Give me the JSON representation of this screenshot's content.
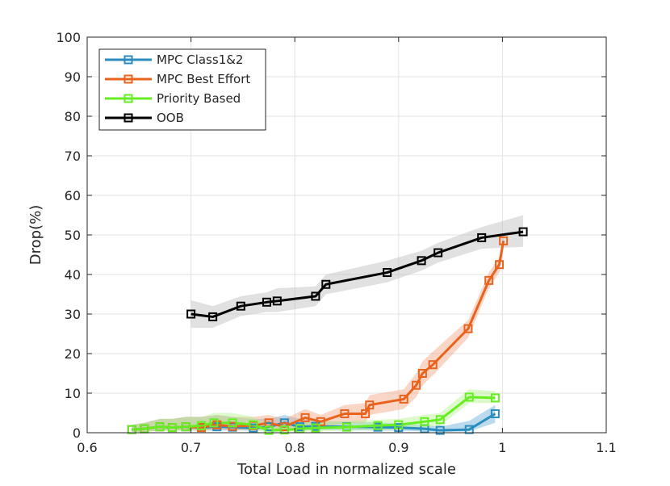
{
  "chart_data": {
    "type": "line",
    "title": "",
    "xlabel": "Total Load in normalized scale",
    "ylabel": "Drop(%)",
    "xlim": [
      0.6,
      1.1
    ],
    "ylim": [
      0,
      100
    ],
    "xticks": [
      0.6,
      0.7,
      0.8,
      0.9,
      1.0,
      1.1
    ],
    "xtick_labels": [
      "0.6",
      "0.7",
      "0.8",
      "0.9",
      "1",
      "1.1"
    ],
    "yticks": [
      0,
      10,
      20,
      30,
      40,
      50,
      60,
      70,
      80,
      90,
      100
    ],
    "ytick_labels": [
      "0",
      "10",
      "20",
      "30",
      "40",
      "50",
      "60",
      "70",
      "80",
      "90",
      "100"
    ],
    "grid": true,
    "legend_position": "top-left",
    "series": [
      {
        "name": "MPC Class1&2",
        "color": "#2b8cbe",
        "band_color": "#6baed6",
        "x": [
          0.643,
          0.655,
          0.67,
          0.682,
          0.695,
          0.71,
          0.725,
          0.74,
          0.76,
          0.775,
          0.79,
          0.805,
          0.82,
          0.85,
          0.88,
          0.9,
          0.925,
          0.94,
          0.968,
          0.993
        ],
        "y": [
          0.8,
          1.0,
          1.5,
          1.3,
          1.5,
          1.3,
          1.5,
          1.4,
          1.2,
          1.5,
          2.5,
          1.5,
          1.6,
          1.5,
          1.4,
          1.3,
          1.0,
          0.6,
          0.8,
          4.8
        ],
        "low": [
          0.2,
          0.3,
          0.5,
          0.5,
          0.6,
          0.5,
          0.5,
          0.6,
          0.5,
          0.6,
          1.0,
          0.6,
          0.7,
          0.6,
          0.5,
          0.5,
          0.3,
          0.2,
          0.3,
          2.5
        ],
        "high": [
          2.0,
          2.5,
          3.5,
          3.5,
          4.0,
          4.0,
          4.5,
          4.0,
          3.5,
          3.5,
          4.5,
          3.5,
          3.0,
          2.8,
          2.6,
          2.4,
          2.0,
          1.5,
          3.0,
          7.0
        ]
      },
      {
        "name": "MPC Best Effort",
        "color": "#e8641e",
        "band_color": "#f4a582",
        "x": [
          0.643,
          0.655,
          0.67,
          0.682,
          0.695,
          0.71,
          0.725,
          0.74,
          0.76,
          0.775,
          0.79,
          0.81,
          0.825,
          0.848,
          0.868,
          0.872,
          0.905,
          0.917,
          0.923,
          0.933,
          0.967,
          0.987,
          0.997,
          1.001
        ],
        "y": [
          0.8,
          1.0,
          1.5,
          1.3,
          1.5,
          1.3,
          2.0,
          1.6,
          1.8,
          2.5,
          1.5,
          3.8,
          2.8,
          4.8,
          4.8,
          7.0,
          8.5,
          12.0,
          15.0,
          17.2,
          26.3,
          38.5,
          42.5,
          48.5
        ],
        "low": [
          0.2,
          0.3,
          0.5,
          0.5,
          0.6,
          0.5,
          0.8,
          0.6,
          0.7,
          1.0,
          0.6,
          1.8,
          1.2,
          2.5,
          2.5,
          4.5,
          6.0,
          9.0,
          12.0,
          14.5,
          24.0,
          36.5,
          40.5,
          46.5
        ],
        "high": [
          2.0,
          2.5,
          3.5,
          3.5,
          4.0,
          4.0,
          4.5,
          4.0,
          4.0,
          4.5,
          3.5,
          6.0,
          4.5,
          7.0,
          7.5,
          9.5,
          11.0,
          15.0,
          18.0,
          20.5,
          28.5,
          40.5,
          44.5,
          50.5
        ]
      },
      {
        "name": "Priority Based",
        "color": "#66ee22",
        "band_color": "#b6f58e",
        "x": [
          0.643,
          0.655,
          0.67,
          0.682,
          0.695,
          0.71,
          0.722,
          0.74,
          0.76,
          0.775,
          0.79,
          0.805,
          0.82,
          0.85,
          0.88,
          0.9,
          0.925,
          0.94,
          0.968,
          0.993
        ],
        "y": [
          0.8,
          1.0,
          1.5,
          1.3,
          1.5,
          1.8,
          2.5,
          2.5,
          2.0,
          0.6,
          0.7,
          1.0,
          1.2,
          1.4,
          1.8,
          2.0,
          2.8,
          3.3,
          9.0,
          8.8
        ],
        "low": [
          0.2,
          0.3,
          0.5,
          0.5,
          0.6,
          0.6,
          1.0,
          1.0,
          0.7,
          0.2,
          0.2,
          0.3,
          0.4,
          0.5,
          0.7,
          0.8,
          1.3,
          1.8,
          7.5,
          7.5
        ],
        "high": [
          2.0,
          2.5,
          3.5,
          3.5,
          4.0,
          4.0,
          5.0,
          5.0,
          4.0,
          2.0,
          2.0,
          2.5,
          2.8,
          3.0,
          3.3,
          3.5,
          4.5,
          5.0,
          11.0,
          10.5
        ]
      },
      {
        "name": "OOB",
        "color": "#000000",
        "band_color": "#bdbdbd",
        "x": [
          0.7,
          0.721,
          0.748,
          0.773,
          0.783,
          0.82,
          0.83,
          0.889,
          0.922,
          0.938,
          0.98,
          1.02
        ],
        "y": [
          30.0,
          29.3,
          32.0,
          33.0,
          33.3,
          34.5,
          37.5,
          40.5,
          43.5,
          45.5,
          49.3,
          50.8
        ],
        "low": [
          26.5,
          26.5,
          29.5,
          30.5,
          30.5,
          32.0,
          35.0,
          38.0,
          41.0,
          43.0,
          46.5,
          47.0
        ],
        "high": [
          33.5,
          32.0,
          34.5,
          35.5,
          36.5,
          37.0,
          40.0,
          43.5,
          46.0,
          48.0,
          52.0,
          55.0
        ]
      }
    ]
  }
}
